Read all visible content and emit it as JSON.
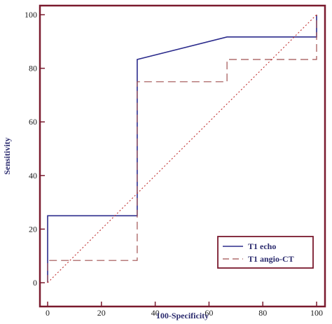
{
  "chart_data": {
    "type": "line",
    "title": "",
    "xlabel": "100-Specificity",
    "ylabel": "Sensitivity",
    "xlim": [
      0,
      100
    ],
    "ylim": [
      0,
      100
    ],
    "x_ticks": [
      0,
      20,
      40,
      60,
      80,
      100
    ],
    "y_ticks": [
      0,
      20,
      40,
      60,
      80,
      100
    ],
    "grid": false,
    "legend_position": "bottom-right",
    "series": [
      {
        "name": "T1 echo",
        "style": "solid",
        "color": "#2b2b8c",
        "points": [
          [
            0,
            0
          ],
          [
            0,
            25
          ],
          [
            33.3,
            25
          ],
          [
            33.3,
            83.3
          ],
          [
            66.7,
            91.7
          ],
          [
            100,
            91.7
          ],
          [
            100,
            100
          ]
        ]
      },
      {
        "name": "T1 angio-CT",
        "style": "dashed",
        "color": "#a05050",
        "points": [
          [
            0,
            0
          ],
          [
            0,
            8.3
          ],
          [
            33.3,
            8.3
          ],
          [
            33.3,
            75
          ],
          [
            66.7,
            75
          ],
          [
            66.7,
            83.3
          ],
          [
            100,
            83.3
          ],
          [
            100,
            100
          ]
        ]
      },
      {
        "name": "",
        "style": "dotted",
        "color": "#c03030",
        "points": [
          [
            0,
            0
          ],
          [
            100,
            100
          ]
        ]
      }
    ],
    "colors": {
      "frame": "#7a1a2e",
      "text": "#2b2b6e"
    }
  }
}
